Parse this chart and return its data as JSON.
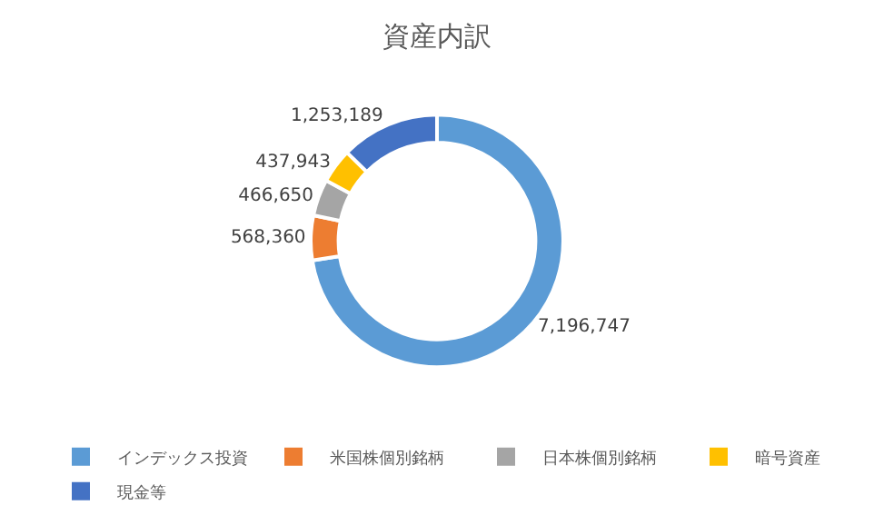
{
  "chart_data": {
    "type": "donut",
    "title": "資産内訳",
    "categories": [
      "インデックス投資",
      "米国株個別銘柄",
      "日本株個別銘柄",
      "暗号資産",
      "現金等"
    ],
    "values": [
      7196747,
      568360,
      466650,
      437943,
      1253189
    ],
    "value_labels": [
      "7,196,747",
      "568,360",
      "466,650",
      "437,943",
      "1,253,189"
    ],
    "colors": [
      "#5b9bd5",
      "#ed7d31",
      "#a5a5a5",
      "#ffc000",
      "#4472c4"
    ],
    "legend": "bottom"
  }
}
